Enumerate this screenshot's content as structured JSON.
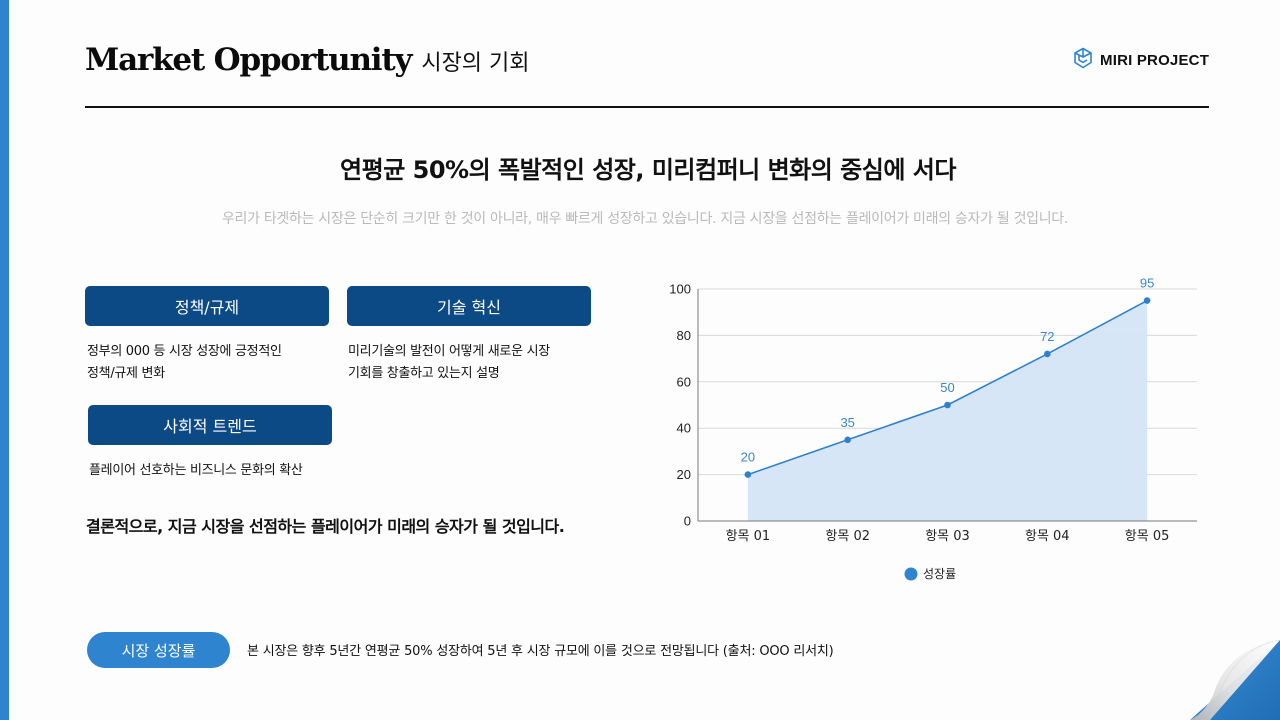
{
  "header": {
    "title_en": "Market Opportunity",
    "title_ko": "시장의 기회",
    "logo_text": "MIRI PROJECT",
    "logo_icon": "cube-icon"
  },
  "main": {
    "headline": "연평균 50%의 폭발적인 성장, 미리컴퍼니 변화의 중심에 서다",
    "subline": "우리가 타겟하는 시장은 단순히 크기만 한 것이 아니라, 매우 빠르게 성장하고 있습니다. 지금 시장을 선점하는 플레이어가 미래의 승자가 될 것입니다.",
    "cards": [
      {
        "label": "정책/규제",
        "desc_line1": "정부의 000 등 시장 성장에 긍정적인",
        "desc_line2": "정책/규제 변화"
      },
      {
        "label": "기술 혁신",
        "desc_line1": "미리기술의 발전이 어떻게 새로운 시장",
        "desc_line2": "기회를 창출하고 있는지 설명"
      },
      {
        "label": "사회적 트렌드",
        "desc_line1": "플레이어 선호하는 비즈니스 문화의 확산",
        "desc_line2": ""
      }
    ],
    "conclusion": "결론적으로, 지금 시장을 선점하는 플레이어가 미래의 승자가 될 것입니다."
  },
  "footer": {
    "pill_label": "시장 성장률",
    "note": "본 시장은 향후 5년간 연평균 50% 성장하여 5년 후 시장 규모에 이를 것으로 전망됩니다 (출처: OOO 리서치)"
  },
  "colors": {
    "accent": "#2f84cf",
    "card_bg": "#0c4a86",
    "area_fill": "#d4e5f6",
    "line": "#2f80cc"
  },
  "chart_data": {
    "type": "area",
    "title": "",
    "categories": [
      "항목 01",
      "항목 02",
      "항목 03",
      "항목 04",
      "항목 05"
    ],
    "series": [
      {
        "name": "성장률",
        "values": [
          20,
          35,
          50,
          72,
          95
        ]
      }
    ],
    "yticks": [
      "0",
      "20",
      "40",
      "60",
      "80",
      "100"
    ],
    "ylim": [
      0,
      100
    ],
    "xlabel": "",
    "ylabel": "",
    "grid": true,
    "data_labels": true,
    "legend_position": "bottom"
  }
}
